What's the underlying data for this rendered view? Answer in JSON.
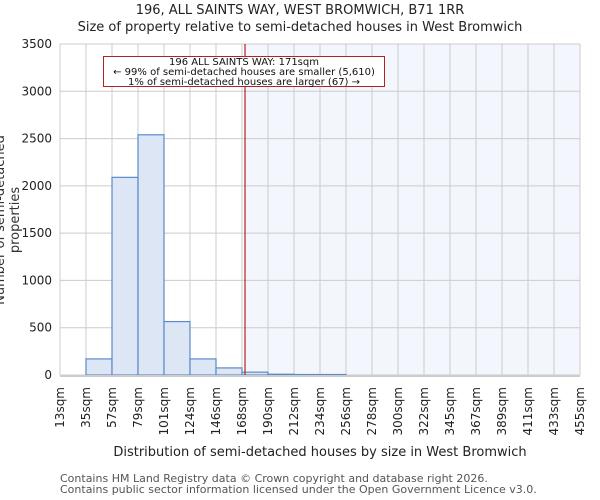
{
  "title": {
    "line1": "196, ALL SAINTS WAY, WEST BROMWICH, B71 1RR",
    "line2": "Size of property relative to semi-detached houses in West Bromwich"
  },
  "annotation": {
    "line1": "196 ALL SAINTS WAY: 171sqm",
    "line2": "← 99% of semi-detached houses are smaller (5,610)",
    "line3": "1% of semi-detached houses are larger (67) →"
  },
  "axes": {
    "xlabel": "Distribution of semi-detached houses by size in West Bromwich",
    "ylabel": "Number of semi-detached properties"
  },
  "footer": {
    "line1": "Contains HM Land Registry data © Crown copyright and database right 2026.",
    "line2": "Contains public sector information licensed under the Open Government Licence v3.0."
  },
  "colors": {
    "bar_fill": "#dce6f4",
    "bar_edge": "#5b8ac9",
    "marker_line": "#b22222",
    "shade": "#f3f6fd",
    "grid": "#cccccc"
  },
  "chart_data": {
    "type": "bar",
    "title": "Size of property relative to semi-detached houses in West Bromwich",
    "xlabel": "Distribution of semi-detached houses by size in West Bromwich",
    "ylabel": "Number of semi-detached properties",
    "categories": [
      "13sqm",
      "35sqm",
      "57sqm",
      "79sqm",
      "101sqm",
      "124sqm",
      "146sqm",
      "168sqm",
      "190sqm",
      "212sqm",
      "234sqm",
      "256sqm",
      "278sqm",
      "300sqm",
      "322sqm",
      "345sqm",
      "367sqm",
      "389sqm",
      "411sqm",
      "433sqm",
      "455sqm"
    ],
    "values": [
      0,
      170,
      2090,
      2540,
      565,
      170,
      75,
      30,
      8,
      5,
      5,
      0,
      0,
      0,
      0,
      0,
      0,
      0,
      0,
      0
    ],
    "yticks": [
      0,
      500,
      1000,
      1500,
      2000,
      2500,
      3000,
      3500
    ],
    "ylim": [
      0,
      3500
    ],
    "grid": true,
    "marker": {
      "value_sqm": 171,
      "label": "196 ALL SAINTS WAY: 171sqm"
    },
    "legend": null
  }
}
